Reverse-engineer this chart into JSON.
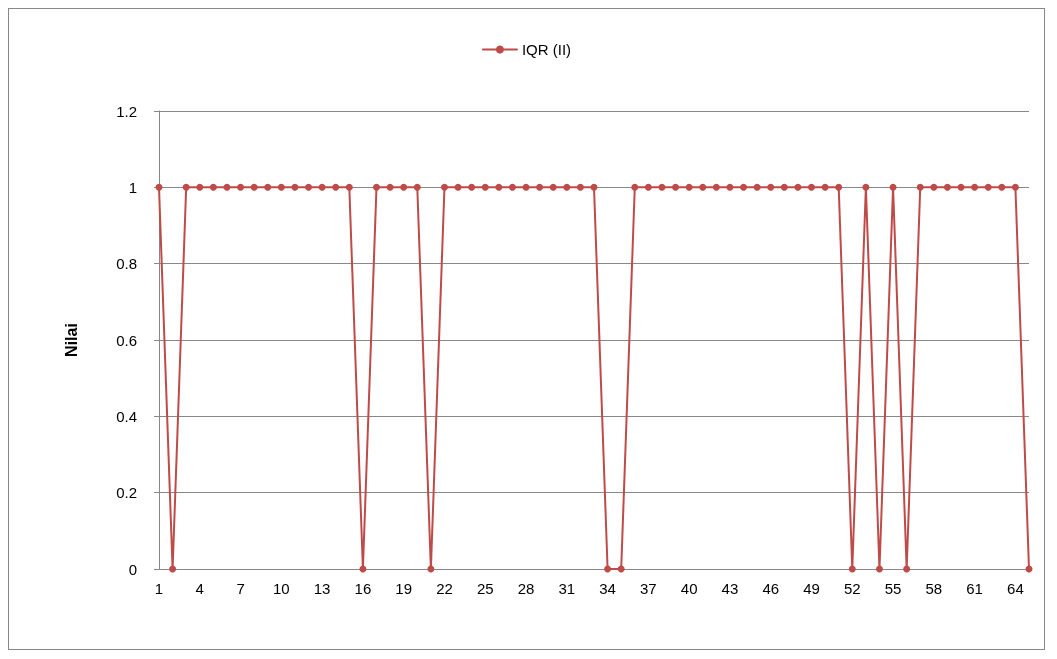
{
  "chart_data": {
    "type": "line",
    "ylabel": "Nilai",
    "categories": [
      "1",
      null,
      null,
      "4",
      null,
      null,
      "7",
      null,
      null,
      "10",
      null,
      null,
      "13",
      null,
      null,
      "16",
      null,
      null,
      "19",
      null,
      null,
      "22",
      null,
      null,
      "25",
      null,
      null,
      "28",
      null,
      null,
      "31",
      null,
      null,
      "34",
      null,
      null,
      "37",
      null,
      null,
      "40",
      null,
      null,
      "43",
      null,
      null,
      "46",
      null,
      null,
      "49",
      null,
      null,
      "52",
      null,
      null,
      "55",
      null,
      null,
      "58",
      null,
      null,
      "61",
      null,
      null,
      "64",
      null
    ],
    "series": [
      {
        "name": "IQR (II)",
        "color": "#be4b48",
        "values": [
          1,
          0,
          1,
          1,
          1,
          1,
          1,
          1,
          1,
          1,
          1,
          1,
          1,
          1,
          1,
          0,
          1,
          1,
          1,
          1,
          0,
          1,
          1,
          1,
          1,
          1,
          1,
          1,
          1,
          1,
          1,
          1,
          1,
          0,
          0,
          1,
          1,
          1,
          1,
          1,
          1,
          1,
          1,
          1,
          1,
          1,
          1,
          1,
          1,
          1,
          1,
          0,
          1,
          0,
          1,
          0,
          1,
          1,
          1,
          1,
          1,
          1,
          1,
          1,
          0
        ]
      }
    ],
    "ylim": [
      0,
      1.2
    ],
    "yticks": [
      0,
      0.2,
      0.4,
      0.6,
      0.8,
      1,
      1.2
    ],
    "grid": "y",
    "legend": "top",
    "marker": "circle",
    "line_style": "solid"
  }
}
